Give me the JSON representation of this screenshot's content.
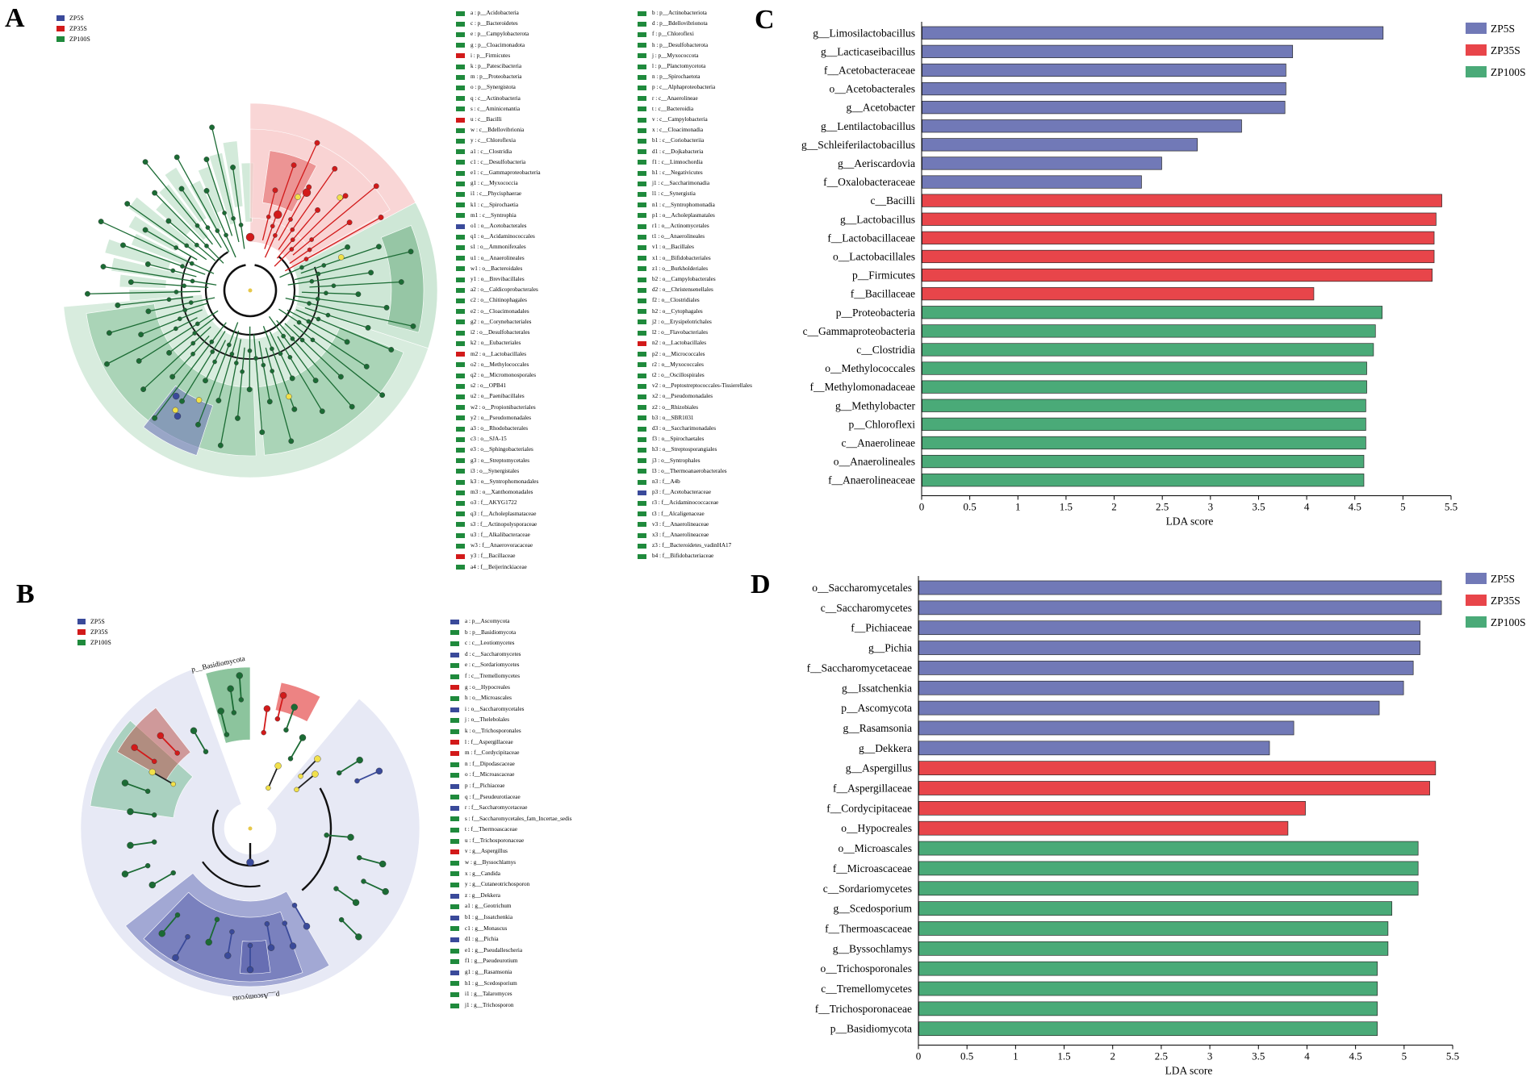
{
  "colors": {
    "ZP5S": "#7179b7",
    "ZP35S": "#e8454a",
    "ZP100S": "#4aaa78",
    "clado_green": "#1b6b34",
    "clado_blue": "#3a4a9a",
    "clado_red": "#d21a1a"
  },
  "panels": {
    "A": "A",
    "B": "B",
    "C": "C",
    "D": "D"
  },
  "legend_groups": [
    "ZP5S",
    "ZP35S",
    "ZP100S"
  ],
  "clade_labels": {
    "b_basidio": "p__Basidiomycota",
    "b_asco": "p__Ascomycota"
  },
  "taxaA_left": [
    {
      "g": "g",
      "t": "a : p__Acidobacteria"
    },
    {
      "g": "g",
      "t": "c : p__Bacteroidetes"
    },
    {
      "g": "g",
      "t": "e : p__Campylobacterota"
    },
    {
      "g": "g",
      "t": "g : p__Cloacimonadota"
    },
    {
      "g": "r",
      "t": "i : p__Firmicutes"
    },
    {
      "g": "g",
      "t": "k : p__Patescibacteria"
    },
    {
      "g": "g",
      "t": "m : p__Proteobacteria"
    },
    {
      "g": "g",
      "t": "o : p__Synergistota"
    },
    {
      "g": "g",
      "t": "q : c__Actinobacteria"
    },
    {
      "g": "g",
      "t": "s : c__Aminicenantia"
    },
    {
      "g": "r",
      "t": "u : c__Bacilli"
    },
    {
      "g": "g",
      "t": "w : c__Bdellovibrionia"
    },
    {
      "g": "g",
      "t": "y : c__Chloroflexia"
    },
    {
      "g": "g",
      "t": "a1 : c__Clostridia"
    },
    {
      "g": "g",
      "t": "c1 : c__Desulfobacteria"
    },
    {
      "g": "g",
      "t": "e1 : c__Gammaproteobacteria"
    },
    {
      "g": "g",
      "t": "g1 : c__Myxococcia"
    },
    {
      "g": "g",
      "t": "i1 : c__Phycisphaerae"
    },
    {
      "g": "g",
      "t": "k1 : c__Spirochaetia"
    },
    {
      "g": "g",
      "t": "m1 : c__Syntrophia"
    },
    {
      "g": "b",
      "t": "o1 : o__Acetobacterales"
    },
    {
      "g": "g",
      "t": "q1 : o__Acidaminococcales"
    },
    {
      "g": "g",
      "t": "s1 : o__Ammonifexales"
    },
    {
      "g": "g",
      "t": "u1 : o__Anaerolineales"
    },
    {
      "g": "g",
      "t": "w1 : o__Bacteroidales"
    },
    {
      "g": "g",
      "t": "y1 : o__Brevibacillales"
    },
    {
      "g": "g",
      "t": "a2 : o__Caldicoprobacterales"
    },
    {
      "g": "g",
      "t": "c2 : o__Chitinophagales"
    },
    {
      "g": "g",
      "t": "e2 : o__Cloacimonadales"
    },
    {
      "g": "g",
      "t": "g2 : o__Corynebacteriales"
    },
    {
      "g": "g",
      "t": "i2 : o__Desulfobacterales"
    },
    {
      "g": "g",
      "t": "k2 : o__Eubacteriales"
    },
    {
      "g": "r",
      "t": "m2 : o__Lactobacillales"
    },
    {
      "g": "g",
      "t": "o2 : o__Methylococcales"
    },
    {
      "g": "g",
      "t": "q2 : o__Micromonosporales"
    },
    {
      "g": "g",
      "t": "s2 : o__OPB41"
    },
    {
      "g": "g",
      "t": "u2 : o__Paenibacillales"
    },
    {
      "g": "g",
      "t": "w2 : o__Propionibacteriales"
    },
    {
      "g": "g",
      "t": "y2 : o__Pseudomonadales"
    },
    {
      "g": "g",
      "t": "a3 : o__Rhodobacterales"
    },
    {
      "g": "g",
      "t": "c3 : o__SJA-15"
    },
    {
      "g": "g",
      "t": "e3 : o__Sphingobacteriales"
    },
    {
      "g": "g",
      "t": "g3 : o__Streptomycetales"
    },
    {
      "g": "g",
      "t": "i3 : o__Synergistales"
    },
    {
      "g": "g",
      "t": "k3 : o__Syntrophomonadales"
    },
    {
      "g": "g",
      "t": "m3 : o__Xanthomonadales"
    },
    {
      "g": "g",
      "t": "o3 : f__AKYG1722"
    },
    {
      "g": "g",
      "t": "q3 : f__Acholeplasmataceae"
    },
    {
      "g": "g",
      "t": "s3 : f__Actinopolysporaceae"
    },
    {
      "g": "g",
      "t": "u3 : f__Alkalibacteraceae"
    },
    {
      "g": "g",
      "t": "w3 : f__Anaerovoracaceae"
    },
    {
      "g": "r",
      "t": "y3 : f__Bacillaceae"
    },
    {
      "g": "g",
      "t": "a4 : f__Beijerinckiaceae"
    }
  ],
  "taxaA_right": [
    {
      "g": "g",
      "t": "b : p__Actinobacteriota"
    },
    {
      "g": "g",
      "t": "d : p__Bdellovibrionota"
    },
    {
      "g": "g",
      "t": "f : p__Chloroflexi"
    },
    {
      "g": "g",
      "t": "h : p__Desulfobacterota"
    },
    {
      "g": "g",
      "t": "j : p__Myxococcota"
    },
    {
      "g": "g",
      "t": "l : p__Planctomycetota"
    },
    {
      "g": "g",
      "t": "n : p__Spirochaetota"
    },
    {
      "g": "g",
      "t": "p : c__Alphaproteobacteria"
    },
    {
      "g": "g",
      "t": "r : c__Anaerolineae"
    },
    {
      "g": "g",
      "t": "t : c__Bacteroidia"
    },
    {
      "g": "g",
      "t": "v : c__Campylobacteria"
    },
    {
      "g": "g",
      "t": "x : c__Cloacimonadia"
    },
    {
      "g": "g",
      "t": "b1 : c__Coriobacteriia"
    },
    {
      "g": "g",
      "t": "d1 : c__Dojkabacteria"
    },
    {
      "g": "g",
      "t": "f1 : c__Limnochordia"
    },
    {
      "g": "g",
      "t": "h1 : c__Negativicutes"
    },
    {
      "g": "g",
      "t": "j1 : c__Saccharimonadia"
    },
    {
      "g": "g",
      "t": "l1 : c__Synergistia"
    },
    {
      "g": "g",
      "t": "n1 : c__Syntrophomonadia"
    },
    {
      "g": "g",
      "t": "p1 : o__Acholeplasmatales"
    },
    {
      "g": "g",
      "t": "r1 : o__Actinomycetales"
    },
    {
      "g": "g",
      "t": "t1 : o__Anaerolineales"
    },
    {
      "g": "g",
      "t": "v1 : o__Bacillales"
    },
    {
      "g": "g",
      "t": "x1 : o__Bifidobacteriales"
    },
    {
      "g": "g",
      "t": "z1 : o__Burkholderiales"
    },
    {
      "g": "g",
      "t": "b2 : o__Campylobacterales"
    },
    {
      "g": "g",
      "t": "d2 : o__Christensenellales"
    },
    {
      "g": "g",
      "t": "f2 : o__Clostridiales"
    },
    {
      "g": "g",
      "t": "h2 : o__Cytophagales"
    },
    {
      "g": "g",
      "t": "j2 : o__Erysipelotrichales"
    },
    {
      "g": "g",
      "t": "l2 : o__Flavobacteriales"
    },
    {
      "g": "r",
      "t": "n2 : o__Lactobacillales"
    },
    {
      "g": "g",
      "t": "p2 : o__Micrococcales"
    },
    {
      "g": "g",
      "t": "r2 : o__Myxococcales"
    },
    {
      "g": "g",
      "t": "t2 : o__Oscillospirales"
    },
    {
      "g": "g",
      "t": "v2 : o__Peptostreptococcales-Tissierellales"
    },
    {
      "g": "g",
      "t": "x2 : o__Pseudomonadales"
    },
    {
      "g": "g",
      "t": "z2 : o__Rhizobiales"
    },
    {
      "g": "g",
      "t": "b3 : o__SBR1031"
    },
    {
      "g": "g",
      "t": "d3 : o__Saccharimonadales"
    },
    {
      "g": "g",
      "t": "f3 : o__Spirochaetales"
    },
    {
      "g": "g",
      "t": "h3 : o__Streptosporangiales"
    },
    {
      "g": "g",
      "t": "j3 : o__Syntrophales"
    },
    {
      "g": "g",
      "t": "l3 : o__Thermoanaerobacterales"
    },
    {
      "g": "g",
      "t": "n3 : f__A4b"
    },
    {
      "g": "b",
      "t": "p3 : f__Acetobacteraceae"
    },
    {
      "g": "g",
      "t": "r3 : f__Acidaminococcaceae"
    },
    {
      "g": "g",
      "t": "t3 : f__Alcaligenaceae"
    },
    {
      "g": "g",
      "t": "v3 : f__Anaerolineaceae"
    },
    {
      "g": "g",
      "t": "x3 : f__Anaerolineaceae"
    },
    {
      "g": "g",
      "t": "z3 : f__Bacteroidetes_vadinHA17"
    },
    {
      "g": "g",
      "t": "b4 : f__Bifidobacteriaceae"
    }
  ],
  "taxaB": [
    {
      "g": "b",
      "t": "a : p__Ascomycota"
    },
    {
      "g": "g",
      "t": "b : p__Basidiomycota"
    },
    {
      "g": "g",
      "t": "c : c__Leotiomycetes"
    },
    {
      "g": "b",
      "t": "d : c__Saccharomycetes"
    },
    {
      "g": "g",
      "t": "e : c__Sordariomycetes"
    },
    {
      "g": "g",
      "t": "f : c__Tremellomycetes"
    },
    {
      "g": "r",
      "t": "g : o__Hypocreales"
    },
    {
      "g": "g",
      "t": "h : o__Microascales"
    },
    {
      "g": "b",
      "t": "i : o__Saccharomycetales"
    },
    {
      "g": "g",
      "t": "j : o__Thelebolales"
    },
    {
      "g": "g",
      "t": "k : o__Trichosporonales"
    },
    {
      "g": "r",
      "t": "l : f__Aspergillaceae"
    },
    {
      "g": "r",
      "t": "m : f__Cordycipitaceae"
    },
    {
      "g": "g",
      "t": "n : f__Dipodascaceae"
    },
    {
      "g": "g",
      "t": "o : f__Microascaceae"
    },
    {
      "g": "b",
      "t": "p : f__Pichiaceae"
    },
    {
      "g": "g",
      "t": "q : f__Pseudeurotiaceae"
    },
    {
      "g": "b",
      "t": "r : f__Saccharomycetaceae"
    },
    {
      "g": "g",
      "t": "s : f__Saccharomycetales_fam_Incertae_sedis"
    },
    {
      "g": "g",
      "t": "t : f__Thermoascaceae"
    },
    {
      "g": "g",
      "t": "u : f__Trichosporonaceae"
    },
    {
      "g": "r",
      "t": "v : g__Aspergillus"
    },
    {
      "g": "g",
      "t": "w : g__Byssochlamys"
    },
    {
      "g": "g",
      "t": "x : g__Candida"
    },
    {
      "g": "g",
      "t": "y : g__Cutaneotrichosporon"
    },
    {
      "g": "b",
      "t": "z : g__Dekkera"
    },
    {
      "g": "g",
      "t": "a1 : g__Geotrichum"
    },
    {
      "g": "b",
      "t": "b1 : g__Issatchenkia"
    },
    {
      "g": "g",
      "t": "c1 : g__Monascus"
    },
    {
      "g": "b",
      "t": "d1 : g__Pichia"
    },
    {
      "g": "g",
      "t": "e1 : g__Pseudallescheria"
    },
    {
      "g": "g",
      "t": "f1 : g__Pseudeurotium"
    },
    {
      "g": "b",
      "t": "g1 : g__Rasamsonia"
    },
    {
      "g": "g",
      "t": "h1 : g__Scedosporium"
    },
    {
      "g": "g",
      "t": "i1 : g__Talaromyces"
    },
    {
      "g": "g",
      "t": "j1 : g__Trichosporon"
    }
  ],
  "chart_data": [
    {
      "type": "bar",
      "orientation": "horizontal",
      "panel": "C",
      "xlabel": "LDA score",
      "xlim": [
        0,
        5.5
      ],
      "xticks": [
        "0",
        "0.5",
        "1",
        "1.5",
        "2",
        "2.5",
        "3",
        "3.5",
        "4",
        "4.5",
        "5",
        "5.5"
      ],
      "legend": [
        "ZP5S",
        "ZP35S",
        "ZP100S"
      ],
      "legend_position": "top-right",
      "bars": [
        {
          "label": "g__Limosilactobacillus",
          "value": 4.79,
          "group": "ZP5S"
        },
        {
          "label": "g__Lacticaseibacillus",
          "value": 3.85,
          "group": "ZP5S"
        },
        {
          "label": "f__Acetobacteraceae",
          "value": 3.78,
          "group": "ZP5S"
        },
        {
          "label": "o__Acetobacterales",
          "value": 3.78,
          "group": "ZP5S"
        },
        {
          "label": "g__Acetobacter",
          "value": 3.77,
          "group": "ZP5S"
        },
        {
          "label": "g__Lentilactobacillus",
          "value": 3.32,
          "group": "ZP5S"
        },
        {
          "label": "g__Schleiferilactobacillus",
          "value": 2.86,
          "group": "ZP5S"
        },
        {
          "label": "g__Aeriscardovia",
          "value": 2.49,
          "group": "ZP5S"
        },
        {
          "label": "f__Oxalobacteraceae",
          "value": 2.28,
          "group": "ZP5S"
        },
        {
          "label": "c__Bacilli",
          "value": 5.4,
          "group": "ZP35S"
        },
        {
          "label": "g__Lactobacillus",
          "value": 5.34,
          "group": "ZP35S"
        },
        {
          "label": "f__Lactobacillaceae",
          "value": 5.32,
          "group": "ZP35S"
        },
        {
          "label": "o__Lactobacillales",
          "value": 5.32,
          "group": "ZP35S"
        },
        {
          "label": "p__Firmicutes",
          "value": 5.3,
          "group": "ZP35S"
        },
        {
          "label": "f__Bacillaceae",
          "value": 4.07,
          "group": "ZP35S"
        },
        {
          "label": "p__Proteobacteria",
          "value": 4.78,
          "group": "ZP100S"
        },
        {
          "label": "c__Gammaproteobacteria",
          "value": 4.71,
          "group": "ZP100S"
        },
        {
          "label": "c__Clostridia",
          "value": 4.69,
          "group": "ZP100S"
        },
        {
          "label": "o__Methylococcales",
          "value": 4.62,
          "group": "ZP100S"
        },
        {
          "label": "f__Methylomonadaceae",
          "value": 4.62,
          "group": "ZP100S"
        },
        {
          "label": "g__Methylobacter",
          "value": 4.61,
          "group": "ZP100S"
        },
        {
          "label": "p__Chloroflexi",
          "value": 4.61,
          "group": "ZP100S"
        },
        {
          "label": "c__Anaerolineae",
          "value": 4.61,
          "group": "ZP100S"
        },
        {
          "label": "o__Anaerolineales",
          "value": 4.59,
          "group": "ZP100S"
        },
        {
          "label": "f__Anaerolineaceae",
          "value": 4.59,
          "group": "ZP100S"
        }
      ]
    },
    {
      "type": "bar",
      "orientation": "horizontal",
      "panel": "D",
      "xlabel": "LDA score",
      "xlim": [
        0,
        5.5
      ],
      "xticks": [
        "0",
        "0.5",
        "1",
        "1.5",
        "2",
        "2.5",
        "3",
        "3.5",
        "4",
        "4.5",
        "5",
        "5.5"
      ],
      "legend": [
        "ZP5S",
        "ZP35S",
        "ZP100S"
      ],
      "legend_position": "top-right",
      "bars": [
        {
          "label": "o__Saccharomycetales",
          "value": 5.38,
          "group": "ZP5S"
        },
        {
          "label": "c__Saccharomycetes",
          "value": 5.38,
          "group": "ZP5S"
        },
        {
          "label": "f__Pichiaceae",
          "value": 5.16,
          "group": "ZP5S"
        },
        {
          "label": "g__Pichia",
          "value": 5.16,
          "group": "ZP5S"
        },
        {
          "label": "f__Saccharomycetaceae",
          "value": 5.09,
          "group": "ZP5S"
        },
        {
          "label": "g__Issatchenkia",
          "value": 4.99,
          "group": "ZP5S"
        },
        {
          "label": "p__Ascomycota",
          "value": 4.74,
          "group": "ZP5S"
        },
        {
          "label": "g__Rasamsonia",
          "value": 3.86,
          "group": "ZP5S"
        },
        {
          "label": "g__Dekkera",
          "value": 3.61,
          "group": "ZP5S"
        },
        {
          "label": "g__Aspergillus",
          "value": 5.32,
          "group": "ZP35S"
        },
        {
          "label": "f__Aspergillaceae",
          "value": 5.26,
          "group": "ZP35S"
        },
        {
          "label": "f__Cordycipitaceae",
          "value": 3.98,
          "group": "ZP35S"
        },
        {
          "label": "o__Hypocreales",
          "value": 3.8,
          "group": "ZP35S"
        },
        {
          "label": "o__Microascales",
          "value": 5.14,
          "group": "ZP100S"
        },
        {
          "label": "f__Microascaceae",
          "value": 5.14,
          "group": "ZP100S"
        },
        {
          "label": "c__Sordariomycetes",
          "value": 5.14,
          "group": "ZP100S"
        },
        {
          "label": "g__Scedosporium",
          "value": 4.87,
          "group": "ZP100S"
        },
        {
          "label": "f__Thermoascaceae",
          "value": 4.83,
          "group": "ZP100S"
        },
        {
          "label": "g__Byssochlamys",
          "value": 4.83,
          "group": "ZP100S"
        },
        {
          "label": "o__Trichosporonales",
          "value": 4.72,
          "group": "ZP100S"
        },
        {
          "label": "c__Tremellomycetes",
          "value": 4.72,
          "group": "ZP100S"
        },
        {
          "label": "f__Trichosporonaceae",
          "value": 4.72,
          "group": "ZP100S"
        },
        {
          "label": "p__Basidiomycota",
          "value": 4.72,
          "group": "ZP100S"
        }
      ]
    }
  ]
}
